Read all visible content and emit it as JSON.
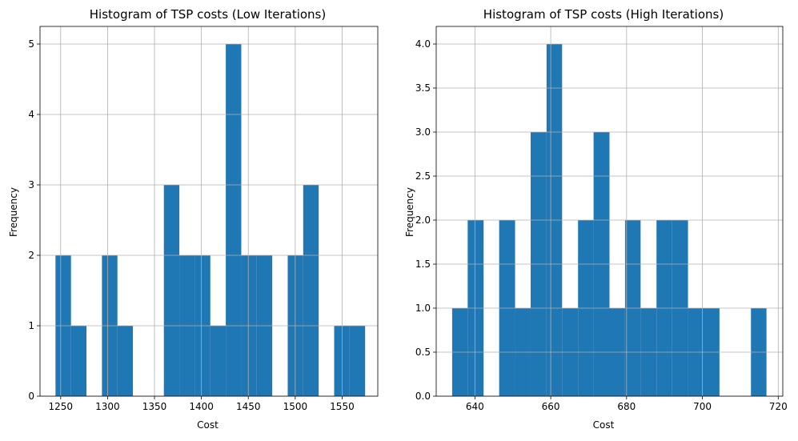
{
  "colors": {
    "bar": "#1f77b4",
    "grid": "#b0b0b0",
    "axis": "#000000",
    "background": "#ffffff"
  },
  "chart_data": [
    {
      "type": "bar",
      "title": "Histogram of TSP costs (Low Iterations)",
      "xlabel": "Cost",
      "ylabel": "Frequency",
      "xlim": [
        1228,
        1588
      ],
      "ylim": [
        0,
        5.25
      ],
      "xticks": [
        1250,
        1300,
        1350,
        1400,
        1450,
        1500,
        1550
      ],
      "xtick_labels": [
        "1250",
        "1300",
        "1350",
        "1400",
        "1450",
        "1500",
        "1550"
      ],
      "yticks": [
        0,
        1,
        2,
        3,
        4,
        5
      ],
      "ytick_labels": [
        "0",
        "1",
        "2",
        "3",
        "4",
        "5"
      ],
      "grid": true,
      "bins": [
        {
          "x0": 1244.5,
          "x1": 1261.0,
          "count": 2
        },
        {
          "x0": 1261.0,
          "x1": 1277.5,
          "count": 1
        },
        {
          "x0": 1294.0,
          "x1": 1310.5,
          "count": 2
        },
        {
          "x0": 1310.5,
          "x1": 1327.0,
          "count": 1
        },
        {
          "x0": 1360.0,
          "x1": 1376.5,
          "count": 3
        },
        {
          "x0": 1376.5,
          "x1": 1393.0,
          "count": 2
        },
        {
          "x0": 1393.0,
          "x1": 1409.5,
          "count": 2
        },
        {
          "x0": 1409.5,
          "x1": 1426.0,
          "count": 1
        },
        {
          "x0": 1426.0,
          "x1": 1442.5,
          "count": 5
        },
        {
          "x0": 1442.5,
          "x1": 1459.0,
          "count": 2
        },
        {
          "x0": 1459.0,
          "x1": 1475.5,
          "count": 2
        },
        {
          "x0": 1492.0,
          "x1": 1508.5,
          "count": 2
        },
        {
          "x0": 1508.5,
          "x1": 1525.0,
          "count": 3
        },
        {
          "x0": 1541.5,
          "x1": 1558.0,
          "count": 1
        },
        {
          "x0": 1558.0,
          "x1": 1574.5,
          "count": 1
        }
      ]
    },
    {
      "type": "bar",
      "title": "Histogram of TSP costs (High Iterations)",
      "xlabel": "Cost",
      "ylabel": "Frequency",
      "xlim": [
        629.8,
        721.2
      ],
      "ylim": [
        0,
        4.2
      ],
      "xticks": [
        640,
        660,
        680,
        700,
        720
      ],
      "xtick_labels": [
        "640",
        "660",
        "680",
        "700",
        "720"
      ],
      "yticks": [
        0,
        0.5,
        1,
        1.5,
        2,
        2.5,
        3,
        3.5,
        4
      ],
      "ytick_labels": [
        "0.0",
        "0.5",
        "1.0",
        "1.5",
        "2.0",
        "2.5",
        "3.0",
        "3.5",
        "4.0"
      ],
      "grid": true,
      "bins": [
        {
          "x0": 634.0,
          "x1": 638.1,
          "count": 1
        },
        {
          "x0": 638.1,
          "x1": 642.3,
          "count": 2
        },
        {
          "x0": 646.4,
          "x1": 650.6,
          "count": 2
        },
        {
          "x0": 650.6,
          "x1": 654.7,
          "count": 1
        },
        {
          "x0": 654.7,
          "x1": 658.9,
          "count": 3
        },
        {
          "x0": 658.9,
          "x1": 663.0,
          "count": 4
        },
        {
          "x0": 663.0,
          "x1": 667.2,
          "count": 1
        },
        {
          "x0": 667.2,
          "x1": 671.3,
          "count": 2
        },
        {
          "x0": 671.3,
          "x1": 675.5,
          "count": 3
        },
        {
          "x0": 675.5,
          "x1": 679.6,
          "count": 1
        },
        {
          "x0": 679.6,
          "x1": 683.7,
          "count": 2
        },
        {
          "x0": 683.7,
          "x1": 687.9,
          "count": 1
        },
        {
          "x0": 687.9,
          "x1": 692.0,
          "count": 2
        },
        {
          "x0": 692.0,
          "x1": 696.2,
          "count": 2
        },
        {
          "x0": 696.2,
          "x1": 700.3,
          "count": 1
        },
        {
          "x0": 700.3,
          "x1": 704.5,
          "count": 1
        },
        {
          "x0": 712.8,
          "x1": 716.9,
          "count": 1
        }
      ]
    }
  ]
}
